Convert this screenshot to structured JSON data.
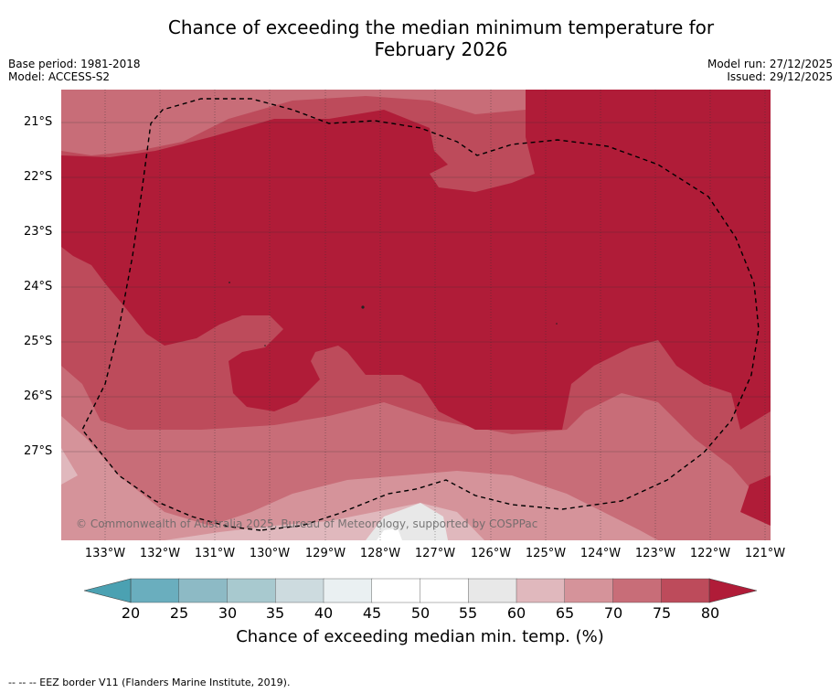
{
  "title_line1": "Chance of exceeding the median minimum temperature for",
  "title_line2": "February 2026",
  "base_period": "Base period: 1981-2018",
  "model": "Model: ACCESS-S2",
  "model_run": "Model run: 27/12/2025",
  "issued": "Issued: 29/12/2025",
  "copyright": "© Commonwealth of Australia 2025, Bureau of Meteorology, supported by COSPPac",
  "lat_labels": [
    "21°S",
    "22°S",
    "23°S",
    "24°S",
    "25°S",
    "26°S",
    "27°S"
  ],
  "lon_labels": [
    "133°W",
    "132°W",
    "131°W",
    "130°W",
    "129°W",
    "128°W",
    "127°W",
    "126°W",
    "125°W",
    "124°W",
    "123°W",
    "122°W",
    "121°W"
  ],
  "colorbar": {
    "ticks": [
      "20",
      "25",
      "30",
      "35",
      "40",
      "45",
      "50",
      "55",
      "60",
      "65",
      "70",
      "75",
      "80"
    ],
    "colors": [
      "#6aaebe",
      "#8dbac5",
      "#a8c9cf",
      "#cddbdf",
      "#eaf0f2",
      "#ffffff",
      "#ffffff",
      "#e8e8e8",
      "#e0b8bd",
      "#d5939a",
      "#c86d78",
      "#bd4b5b"
    ],
    "low_color": "#4ba1b2",
    "high_color": "#b01c38",
    "title": "Chance of exceeding median min. temp. (%)"
  },
  "footnote": "--  --  -- EEZ border V11 (Flanders Marine Institute, 2019).",
  "palette": {
    "p80": "#b01c38",
    "p75": "#bd4b5b",
    "p70": "#c86d78",
    "p65": "#d5939a",
    "p60": "#e0b8bd",
    "p55": "#e8e8e8",
    "p45": "#ffffff"
  }
}
